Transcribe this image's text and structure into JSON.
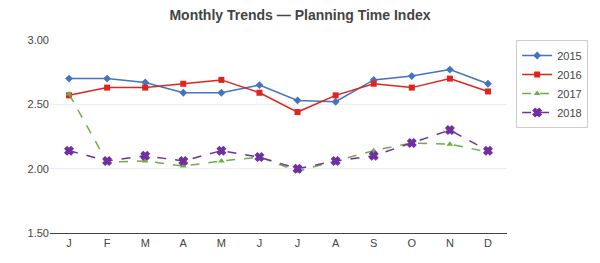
{
  "chart_data": {
    "type": "line",
    "title": "Monthly Trends — Planning Time Index",
    "categories": [
      "J",
      "F",
      "M",
      "A",
      "M",
      "J",
      "J",
      "A",
      "S",
      "O",
      "N",
      "D"
    ],
    "series": [
      {
        "name": "2015",
        "color": "#4472C4",
        "marker": "diamond",
        "line_style": "solid",
        "values": [
          2.7,
          2.7,
          2.67,
          2.59,
          2.59,
          2.65,
          2.53,
          2.52,
          2.69,
          2.72,
          2.77,
          2.66
        ]
      },
      {
        "name": "2016",
        "color": "#E0231C",
        "marker": "square",
        "line_style": "solid",
        "values": [
          2.57,
          2.63,
          2.63,
          2.66,
          2.69,
          2.59,
          2.44,
          2.57,
          2.66,
          2.63,
          2.7,
          2.6
        ]
      },
      {
        "name": "2017",
        "color": "#70AD47",
        "marker": "triangle",
        "line_style": "dashed",
        "values": [
          2.58,
          2.05,
          2.06,
          2.02,
          2.06,
          2.09,
          1.98,
          2.06,
          2.14,
          2.2,
          2.19,
          2.13
        ]
      },
      {
        "name": "2018",
        "color": "#7030A0",
        "marker": "x",
        "line_style": "dashed",
        "values": [
          2.14,
          2.06,
          2.1,
          2.06,
          2.14,
          2.09,
          2.0,
          2.06,
          2.1,
          2.2,
          2.3,
          2.14
        ]
      }
    ],
    "ylim": [
      1.5,
      3.0
    ],
    "yticks": [
      {
        "value": 1.5,
        "label": "1.50"
      },
      {
        "value": 2.0,
        "label": "2.00"
      },
      {
        "value": 2.5,
        "label": "2.50"
      },
      {
        "value": 3.0,
        "label": "3.00"
      }
    ],
    "grid": true,
    "legend": "right"
  }
}
